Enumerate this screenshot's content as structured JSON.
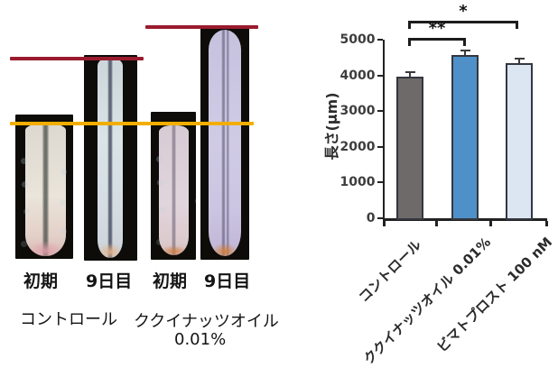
{
  "figure": {
    "left_panel": {
      "photos": [
        {
          "id": "control-initial",
          "time_label": "初期"
        },
        {
          "id": "control-day9",
          "time_label": "9日目"
        },
        {
          "id": "treatment-initial",
          "time_label": "初期"
        },
        {
          "id": "treatment-day9",
          "time_label": "9日目"
        }
      ],
      "group_labels": {
        "control": "コントロール",
        "treatment": "ククイナッツオイル",
        "treatment_concentration": "0.01%"
      },
      "marker_lines": {
        "initial_length_color": "#f2ae00",
        "day9_length_color": "#9a1b2e"
      }
    }
  },
  "chart_data": {
    "type": "bar",
    "categories": [
      "コントロール",
      "ククイナッツオイル 0.01%",
      "ビマトプロスト 100 nM"
    ],
    "values": [
      3970,
      4560,
      4340
    ],
    "errors": [
      130,
      130,
      140
    ],
    "bar_colors": [
      "#6e6a69",
      "#4f90c8",
      "#dce6f3"
    ],
    "bar_border_color": "#33373f",
    "title": "",
    "xlabel": "",
    "ylabel": "長さ(μm)",
    "ylim": [
      0,
      5000
    ],
    "yticks": [
      0,
      1000,
      2000,
      3000,
      4000,
      5000
    ],
    "grid": false,
    "legend": false,
    "significance": [
      {
        "from": 0,
        "to": 1,
        "label": "**"
      },
      {
        "from": 0,
        "to": 2,
        "label": "*"
      }
    ]
  }
}
